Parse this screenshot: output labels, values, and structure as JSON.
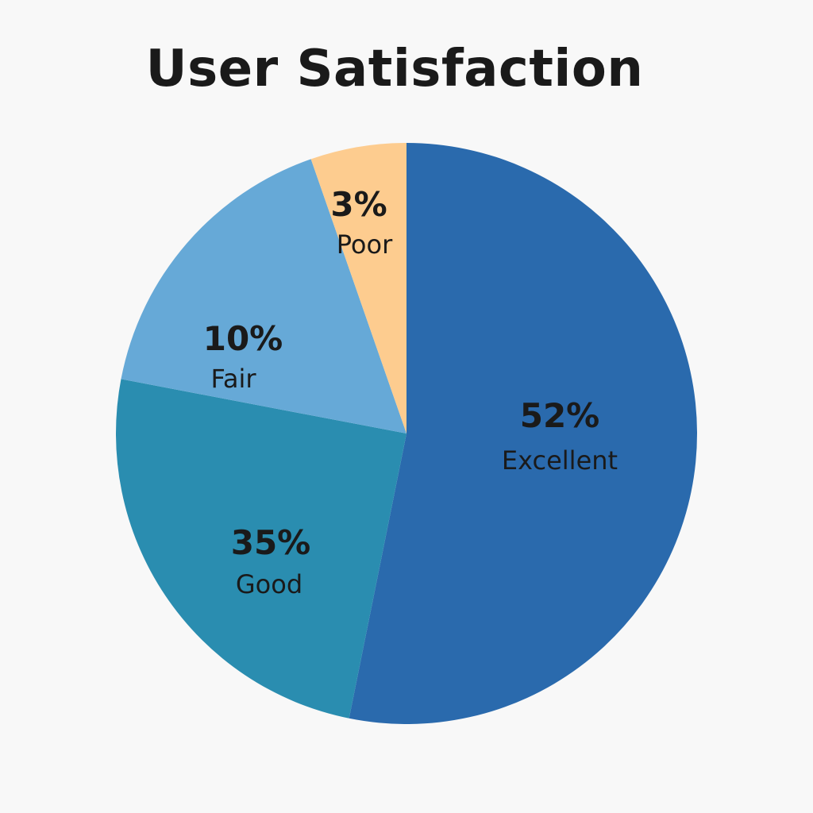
{
  "chart_data": {
    "type": "pie",
    "title": "User Satisfaction",
    "slices": [
      {
        "label": "Excellent",
        "value_label": "52%",
        "value": 52,
        "color": "#2a6aad"
      },
      {
        "label": "Good",
        "value_label": "35%",
        "value": 35,
        "color": "#2a8db0"
      },
      {
        "label": "Fair",
        "value_label": "10%",
        "value": 10,
        "color": "#66a9d7"
      },
      {
        "label": "Poor",
        "value_label": "3%",
        "value": 3,
        "color": "#fdcc8f"
      }
    ]
  }
}
